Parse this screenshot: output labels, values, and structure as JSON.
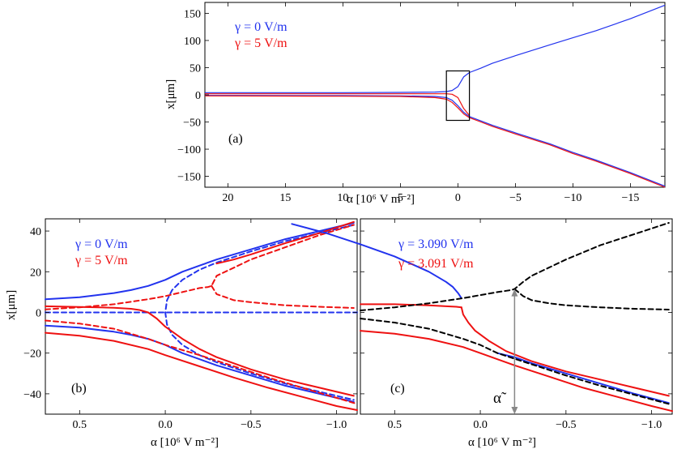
{
  "figure": {
    "colors": {
      "blue": "#2233ee",
      "red": "#ee1111",
      "black": "#000000",
      "gray": "#888888"
    }
  },
  "chart_data": [
    {
      "id": "a",
      "type": "line",
      "panel_label": "(a)",
      "xlabel": "α [10⁶ V m⁻²]",
      "ylabel": "x[μm]",
      "xlim": [
        22,
        -18
      ],
      "ylim": [
        -170,
        170
      ],
      "xticks": [
        20,
        15,
        10,
        5,
        0,
        -5,
        -10,
        -15
      ],
      "xtick_labels": [
        "20",
        "15",
        "10",
        "5",
        "0",
        "−5",
        "−10",
        "−15"
      ],
      "yticks": [
        150,
        100,
        50,
        0,
        -50,
        -100,
        -150
      ],
      "ytick_labels": [
        "150",
        "100",
        "50",
        "0",
        "−50",
        "−100",
        "−150"
      ],
      "legend": [
        {
          "label": "γ = 0 V/m",
          "color": "#2233ee"
        },
        {
          "label": "γ = 5 V/m",
          "color": "#ee1111"
        }
      ],
      "inset_box": {
        "x": [
          1,
          -1
        ],
        "y": [
          -47,
          44
        ]
      },
      "series": [
        {
          "name": "γ = 0 V/m upper",
          "color": "#2233ee",
          "style": "solid",
          "x": [
            22,
            10,
            5,
            2,
            1,
            0.5,
            0,
            -0.5,
            -1,
            -2,
            -3,
            -5,
            -8,
            -10,
            -12,
            -15,
            -18
          ],
          "y": [
            4,
            4,
            4.5,
            5,
            6,
            8,
            15,
            33,
            41,
            49,
            58,
            72,
            92,
            105,
            118,
            140,
            165
          ]
        },
        {
          "name": "γ = 0 V/m lower",
          "color": "#2233ee",
          "style": "solid",
          "x": [
            22,
            10,
            5,
            2,
            1,
            0.5,
            0,
            -0.5,
            -1,
            -2,
            -3,
            -5,
            -8,
            -10,
            -12,
            -15,
            -18
          ],
          "y": [
            -1,
            -1.5,
            -2,
            -3,
            -5,
            -10,
            -20,
            -32,
            -40,
            -48,
            -56,
            -70,
            -90,
            -106,
            -120,
            -143,
            -168
          ]
        },
        {
          "name": "γ = 5 V/m upper",
          "color": "#ee1111",
          "style": "solid",
          "x": [
            22,
            10,
            5,
            2,
            1,
            0.5,
            0,
            -0.5,
            -1
          ],
          "y": [
            2,
            2,
            2,
            2,
            2,
            1,
            -5,
            -25,
            -38
          ]
        },
        {
          "name": "γ = 5 V/m lower",
          "color": "#ee1111",
          "style": "solid",
          "x": [
            22,
            10,
            5,
            2,
            1,
            0.5,
            0,
            -0.5,
            -1,
            -2,
            -3,
            -5,
            -8,
            -10,
            -12,
            -15,
            -18
          ],
          "y": [
            -2,
            -2.5,
            -3,
            -5,
            -8,
            -14,
            -24,
            -35,
            -42,
            -50,
            -58,
            -72,
            -92,
            -108,
            -122,
            -145,
            -170
          ]
        }
      ]
    },
    {
      "id": "b",
      "type": "line",
      "panel_label": "(b)",
      "xlabel": "α [10⁶ V m⁻²]",
      "ylabel": "x[μm]",
      "xlim": [
        0.7,
        -1.12
      ],
      "ylim": [
        -50,
        46
      ],
      "xticks": [
        0.5,
        0.0,
        -0.5,
        -1.0
      ],
      "xtick_labels": [
        "0.5",
        "0.0",
        "−0.5",
        "−1.0"
      ],
      "yticks": [
        40,
        20,
        0,
        -20,
        -40
      ],
      "ytick_labels": [
        "40",
        "20",
        "0",
        "−20",
        "−40"
      ],
      "legend": [
        {
          "label": "γ = 0 V/m",
          "color": "#2233ee"
        },
        {
          "label": "γ = 5 V/m",
          "color": "#ee1111"
        }
      ],
      "series": [
        {
          "name": "blue stable upper",
          "color": "#2233ee",
          "style": "solid",
          "x": [
            0.7,
            0.5,
            0.3,
            0.2,
            0.1,
            0.0,
            -0.1,
            -0.2,
            -0.3,
            -0.5,
            -0.7,
            -0.9,
            -1.1
          ],
          "y": [
            6.5,
            7.5,
            9.5,
            11,
            13,
            16,
            20,
            23,
            26,
            31,
            36,
            40,
            44
          ]
        },
        {
          "name": "blue stable lower",
          "color": "#2233ee",
          "style": "solid",
          "x": [
            0.7,
            0.5,
            0.3,
            0.2,
            0.1,
            0.0,
            -0.1,
            -0.2,
            -0.3,
            -0.5,
            -0.7,
            -0.9,
            -1.1
          ],
          "y": [
            -6.5,
            -7.5,
            -9.5,
            -11,
            -13,
            -16,
            -20,
            -23,
            -26,
            -31,
            -36,
            -40,
            -44
          ]
        },
        {
          "name": "blue unstable zero",
          "color": "#2233ee",
          "style": "dashed",
          "x": [
            0.7,
            -1.12
          ],
          "y": [
            0,
            0
          ]
        },
        {
          "name": "blue unstable loop",
          "color": "#2233ee",
          "style": "dashed",
          "x": [
            -1.1,
            -0.9,
            -0.7,
            -0.5,
            -0.3,
            -0.2,
            -0.1,
            -0.04,
            -0.01,
            0.0,
            -0.01,
            -0.04,
            -0.1,
            -0.2,
            -0.3,
            -0.5,
            -0.7,
            -0.9,
            -1.1
          ],
          "y": [
            43,
            39,
            35,
            30,
            24.5,
            21,
            16,
            11,
            6,
            0,
            -6,
            -11,
            -16,
            -21,
            -24.5,
            -30,
            -35,
            -39,
            -43
          ]
        },
        {
          "name": "red stable upper-left",
          "color": "#ee1111",
          "style": "solid",
          "x": [
            0.7,
            0.5,
            0.3,
            0.2,
            0.15,
            0.1
          ],
          "y": [
            3,
            2.7,
            2.3,
            1.8,
            1.2,
            0
          ]
        },
        {
          "name": "red stable connecting",
          "color": "#ee1111",
          "style": "solid",
          "x": [
            0.1,
            0.05,
            0.0,
            -0.1,
            -0.2,
            -0.3,
            -0.5,
            -0.7,
            -0.9,
            -1.1
          ],
          "y": [
            0,
            -3,
            -7,
            -13,
            -18,
            -22,
            -28,
            -33,
            -37,
            -41
          ]
        },
        {
          "name": "red stable right-upper",
          "color": "#ee1111",
          "style": "solid",
          "x": [
            -0.3,
            -0.4,
            -0.5,
            -0.7,
            -0.9,
            -1.1
          ],
          "y": [
            24,
            26,
            28.5,
            34,
            39,
            44.5
          ]
        },
        {
          "name": "red stable bottom",
          "color": "#ee1111",
          "style": "solid",
          "x": [
            0.7,
            0.5,
            0.3,
            0.1,
            0.0,
            -0.2,
            -0.4,
            -0.6,
            -0.8,
            -1.0,
            -1.12
          ],
          "y": [
            -10,
            -11.5,
            -14,
            -18,
            -21,
            -26.5,
            -32,
            -37,
            -41.5,
            -46,
            -48
          ]
        },
        {
          "name": "red unstable loop upper",
          "color": "#ee1111",
          "style": "dashed",
          "x": [
            0.7,
            0.5,
            0.3,
            0.1,
            0.0,
            -0.1,
            -0.2,
            -0.25,
            -0.27,
            -0.3,
            -0.4,
            -0.5,
            -0.7,
            -0.9,
            -1.1
          ],
          "y": [
            1.5,
            2.5,
            4,
            6.5,
            8,
            10,
            12,
            12.5,
            13,
            18,
            22,
            26,
            32,
            38,
            43
          ]
        },
        {
          "name": "red unstable loop lower branch",
          "color": "#ee1111",
          "style": "dashed",
          "x": [
            -0.27,
            -0.3,
            -0.4,
            -0.5,
            -0.7,
            -0.9,
            -1.1
          ],
          "y": [
            13,
            9,
            6,
            5,
            3.5,
            2.8,
            2.2
          ]
        },
        {
          "name": "red unstable lower",
          "color": "#ee1111",
          "style": "dashed",
          "x": [
            0.7,
            0.5,
            0.3,
            0.1,
            0.0,
            -0.2,
            -0.4,
            -0.6,
            -0.8,
            -1.0,
            -1.12
          ],
          "y": [
            -4,
            -5.5,
            -8,
            -13,
            -16,
            -21,
            -26.5,
            -32,
            -37,
            -42,
            -45
          ]
        }
      ]
    },
    {
      "id": "c",
      "type": "line",
      "panel_label": "(c)",
      "xlabel": "α [10⁶ V m⁻²]",
      "ylabel": "",
      "annotation": "α̃",
      "xlim": [
        0.7,
        -1.12
      ],
      "ylim": [
        -50,
        46
      ],
      "xticks": [
        0.5,
        0.0,
        -0.5,
        -1.0
      ],
      "xtick_labels": [
        "0.5",
        "0.0",
        "−0.5",
        "−1.0"
      ],
      "yticks": [
        40,
        20,
        0,
        -20,
        -40
      ],
      "legend": [
        {
          "label": "γ = 3.090 V/m",
          "color": "#2233ee"
        },
        {
          "label": "γ = 3.091 V/m",
          "color": "#ee1111"
        }
      ],
      "series": [
        {
          "name": "blue upper",
          "color": "#2233ee",
          "style": "solid",
          "x": [
            0.11,
            0.13,
            0.16,
            0.2,
            0.3,
            0.5,
            0.7,
            0.9,
            1.1
          ],
          "y": [
            7,
            9.5,
            12.5,
            15,
            20,
            27.5,
            33.5,
            39,
            43.5
          ]
        },
        {
          "name": "blue lower",
          "color": "#2233ee",
          "style": "solid",
          "x": [
            -0.1,
            -0.2,
            -0.3,
            -0.5,
            -0.7,
            -0.9,
            -1.1
          ],
          "y": [
            -20,
            -22,
            -25,
            -30,
            -35,
            -40,
            -44.5
          ]
        },
        {
          "name": "red left",
          "color": "#ee1111",
          "style": "solid",
          "x": [
            0.7,
            0.5,
            0.3,
            0.2,
            0.14,
            0.11
          ],
          "y": [
            4,
            4,
            3.5,
            3,
            2.8,
            2.5
          ]
        },
        {
          "name": "red down",
          "color": "#ee1111",
          "style": "solid",
          "x": [
            0.11,
            0.1,
            0.07,
            0.03,
            -0.05,
            -0.15,
            -0.3,
            -0.5,
            -0.7,
            -0.9,
            -1.1
          ],
          "y": [
            2.5,
            -1,
            -5,
            -9,
            -14,
            -19,
            -24,
            -29,
            -33,
            -37,
            -41
          ]
        },
        {
          "name": "red bottom",
          "color": "#ee1111",
          "style": "solid",
          "x": [
            0.7,
            0.5,
            0.3,
            0.1,
            0.0,
            -0.2,
            -0.4,
            -0.6,
            -0.8,
            -1.0,
            -1.12
          ],
          "y": [
            -9,
            -10.5,
            -13,
            -17,
            -20,
            -26,
            -31.5,
            -37,
            -41.5,
            -46,
            -48.5
          ]
        },
        {
          "name": "black dashed upper",
          "color": "#000000",
          "style": "dashed",
          "x": [
            0.7,
            0.5,
            0.3,
            0.1,
            0.0,
            -0.1,
            -0.18,
            -0.2,
            -0.25,
            -0.3,
            -0.5,
            -0.7,
            -0.9,
            -1.1
          ],
          "y": [
            1,
            2.5,
            4.5,
            7,
            8.5,
            10,
            11,
            11.5,
            15,
            18,
            26,
            33,
            38.5,
            44
          ]
        },
        {
          "name": "black dashed branch",
          "color": "#000000",
          "style": "dashed",
          "x": [
            -0.2,
            -0.25,
            -0.3,
            -0.4,
            -0.5,
            -0.7,
            -0.9,
            -1.1
          ],
          "y": [
            11.5,
            8,
            6,
            4.5,
            3.5,
            2.5,
            1.8,
            1.4
          ]
        },
        {
          "name": "black dashed lower",
          "color": "#000000",
          "style": "dashed",
          "x": [
            0.7,
            0.5,
            0.3,
            0.1,
            0.0,
            -0.1,
            -0.3,
            -0.5,
            -0.7,
            -0.9,
            -1.1
          ],
          "y": [
            -3,
            -5,
            -8,
            -13,
            -16,
            -20,
            -25.5,
            -31,
            -36,
            -40.5,
            -45
          ]
        }
      ]
    }
  ]
}
